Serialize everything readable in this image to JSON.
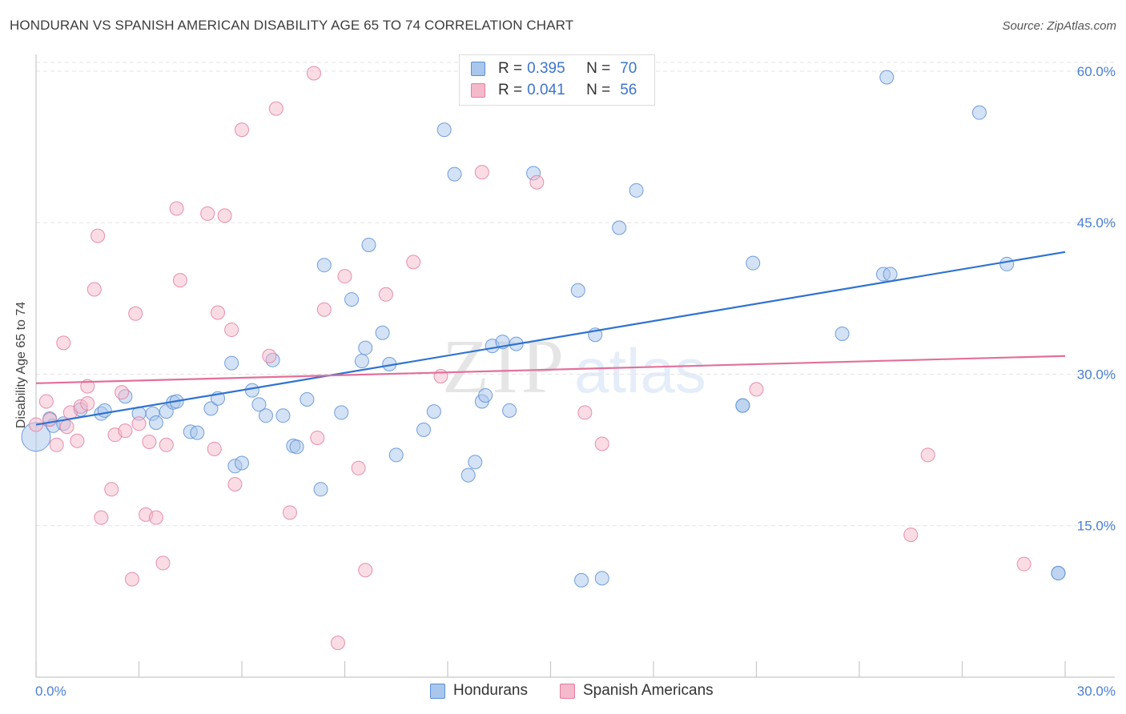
{
  "header": {
    "title": "HONDURAN VS SPANISH AMERICAN DISABILITY AGE 65 TO 74 CORRELATION CHART",
    "source": "Source: ZipAtlas.com"
  },
  "legend_stats": {
    "r_label": "R =",
    "n_label": "N =",
    "rows": [
      {
        "r": "0.395",
        "n": "70"
      },
      {
        "r": "0.041",
        "n": "56"
      }
    ]
  },
  "watermark": {
    "zip": "ZIP",
    "atlas": "atlas"
  },
  "colors": {
    "blue_fill": "#a9c6ec",
    "blue_stroke": "#5b8fd6",
    "blue_line": "#2f72d0",
    "pink_fill": "#f5b9cc",
    "pink_stroke": "#e27ea0",
    "pink_line": "#e2709a",
    "tick_text": "#4a7fd4",
    "grid": "#e3e3e3"
  },
  "chart_data": {
    "type": "scatter",
    "title": "HONDURAN VS SPANISH AMERICAN DISABILITY AGE 65 TO 74 CORRELATION CHART",
    "xlabel": "",
    "ylabel": "Disability Age 65 to 74",
    "xlim": [
      0,
      30
    ],
    "ylim": [
      0,
      61.5
    ],
    "x_tick_labels": [
      "0.0%",
      "30.0%"
    ],
    "y_ticks": [
      15,
      30,
      45,
      60
    ],
    "y_tick_labels": [
      "15.0%",
      "30.0%",
      "45.0%",
      "60.0%"
    ],
    "grid": "horizontal dashed",
    "legend_position": "bottom-center",
    "series": [
      {
        "name": "Hondurans",
        "r": 0.395,
        "n": 70,
        "trend": {
          "x": [
            0,
            30
          ],
          "y": [
            25.0,
            42.1
          ]
        },
        "points": [
          [
            0.0,
            23.8
          ],
          [
            0.4,
            25.6
          ],
          [
            0.5,
            24.9
          ],
          [
            0.8,
            25.1
          ],
          [
            1.3,
            26.5
          ],
          [
            1.9,
            26.1
          ],
          [
            2.6,
            27.8
          ],
          [
            3.0,
            26.1
          ],
          [
            3.4,
            26.1
          ],
          [
            3.5,
            25.2
          ],
          [
            3.8,
            26.3
          ],
          [
            4.0,
            27.2
          ],
          [
            4.1,
            27.3
          ],
          [
            4.5,
            24.3
          ],
          [
            4.7,
            24.2
          ],
          [
            5.1,
            26.6
          ],
          [
            5.3,
            27.6
          ],
          [
            5.7,
            31.1
          ],
          [
            5.8,
            20.9
          ],
          [
            6.0,
            21.2
          ],
          [
            6.3,
            28.4
          ],
          [
            6.5,
            27.0
          ],
          [
            6.7,
            25.9
          ],
          [
            6.9,
            31.4
          ],
          [
            7.2,
            25.9
          ],
          [
            7.5,
            22.9
          ],
          [
            7.6,
            22.8
          ],
          [
            7.9,
            27.5
          ],
          [
            8.3,
            18.6
          ],
          [
            8.4,
            40.8
          ],
          [
            8.9,
            26.2
          ],
          [
            9.2,
            37.4
          ],
          [
            9.5,
            31.3
          ],
          [
            9.6,
            32.6
          ],
          [
            9.7,
            42.8
          ],
          [
            10.1,
            34.1
          ],
          [
            10.3,
            31.0
          ],
          [
            10.5,
            22.0
          ],
          [
            11.3,
            24.5
          ],
          [
            11.6,
            26.3
          ],
          [
            11.9,
            54.2
          ],
          [
            12.2,
            49.8
          ],
          [
            12.6,
            20.0
          ],
          [
            12.8,
            21.3
          ],
          [
            13.0,
            27.3
          ],
          [
            13.1,
            27.9
          ],
          [
            13.3,
            32.8
          ],
          [
            13.6,
            33.2
          ],
          [
            13.8,
            26.4
          ],
          [
            14.0,
            33.0
          ],
          [
            14.5,
            49.9
          ],
          [
            15.6,
            58.5
          ],
          [
            15.8,
            38.3
          ],
          [
            15.9,
            9.6
          ],
          [
            16.3,
            33.9
          ],
          [
            16.5,
            9.8
          ],
          [
            17.0,
            44.5
          ],
          [
            17.5,
            48.2
          ],
          [
            20.6,
            26.9
          ],
          [
            20.6,
            26.9
          ],
          [
            20.9,
            41.0
          ],
          [
            23.5,
            34.0
          ],
          [
            24.7,
            39.9
          ],
          [
            24.8,
            59.4
          ],
          [
            24.9,
            39.9
          ],
          [
            27.5,
            55.9
          ],
          [
            28.3,
            40.9
          ],
          [
            29.8,
            10.3
          ],
          [
            29.8,
            10.3
          ],
          [
            2.0,
            26.4
          ]
        ]
      },
      {
        "name": "Spanish Americans",
        "r": 0.041,
        "n": 56,
        "trend": {
          "x": [
            0,
            30
          ],
          "y": [
            29.1,
            31.8
          ]
        },
        "points": [
          [
            0.0,
            25.0
          ],
          [
            0.3,
            27.3
          ],
          [
            0.4,
            25.5
          ],
          [
            0.6,
            23.0
          ],
          [
            0.8,
            33.1
          ],
          [
            0.9,
            24.8
          ],
          [
            1.0,
            26.2
          ],
          [
            1.2,
            23.4
          ],
          [
            1.3,
            26.8
          ],
          [
            1.5,
            28.8
          ],
          [
            1.7,
            38.4
          ],
          [
            1.8,
            43.7
          ],
          [
            1.9,
            15.8
          ],
          [
            2.2,
            18.6
          ],
          [
            2.3,
            24.0
          ],
          [
            2.5,
            28.2
          ],
          [
            2.6,
            24.4
          ],
          [
            2.8,
            9.7
          ],
          [
            2.9,
            36.0
          ],
          [
            3.0,
            25.1
          ],
          [
            3.2,
            16.1
          ],
          [
            3.3,
            23.3
          ],
          [
            3.5,
            15.8
          ],
          [
            3.7,
            11.3
          ],
          [
            3.8,
            23.0
          ],
          [
            4.1,
            46.4
          ],
          [
            4.2,
            39.3
          ],
          [
            5.0,
            45.9
          ],
          [
            5.2,
            22.6
          ],
          [
            5.3,
            36.1
          ],
          [
            5.5,
            45.7
          ],
          [
            5.7,
            34.4
          ],
          [
            5.8,
            19.1
          ],
          [
            6.0,
            54.2
          ],
          [
            6.8,
            31.8
          ],
          [
            7.0,
            56.3
          ],
          [
            7.4,
            16.3
          ],
          [
            8.1,
            59.8
          ],
          [
            8.2,
            23.7
          ],
          [
            8.4,
            36.4
          ],
          [
            8.8,
            3.4
          ],
          [
            9.0,
            39.7
          ],
          [
            9.4,
            20.7
          ],
          [
            9.6,
            10.6
          ],
          [
            10.2,
            37.9
          ],
          [
            11.0,
            41.1
          ],
          [
            11.8,
            29.8
          ],
          [
            13.0,
            50.0
          ],
          [
            14.6,
            49.0
          ],
          [
            16.0,
            26.2
          ],
          [
            16.5,
            23.1
          ],
          [
            21.0,
            28.5
          ],
          [
            25.5,
            14.1
          ],
          [
            26.0,
            22.0
          ],
          [
            28.8,
            11.2
          ],
          [
            1.5,
            27.1
          ]
        ]
      }
    ]
  }
}
